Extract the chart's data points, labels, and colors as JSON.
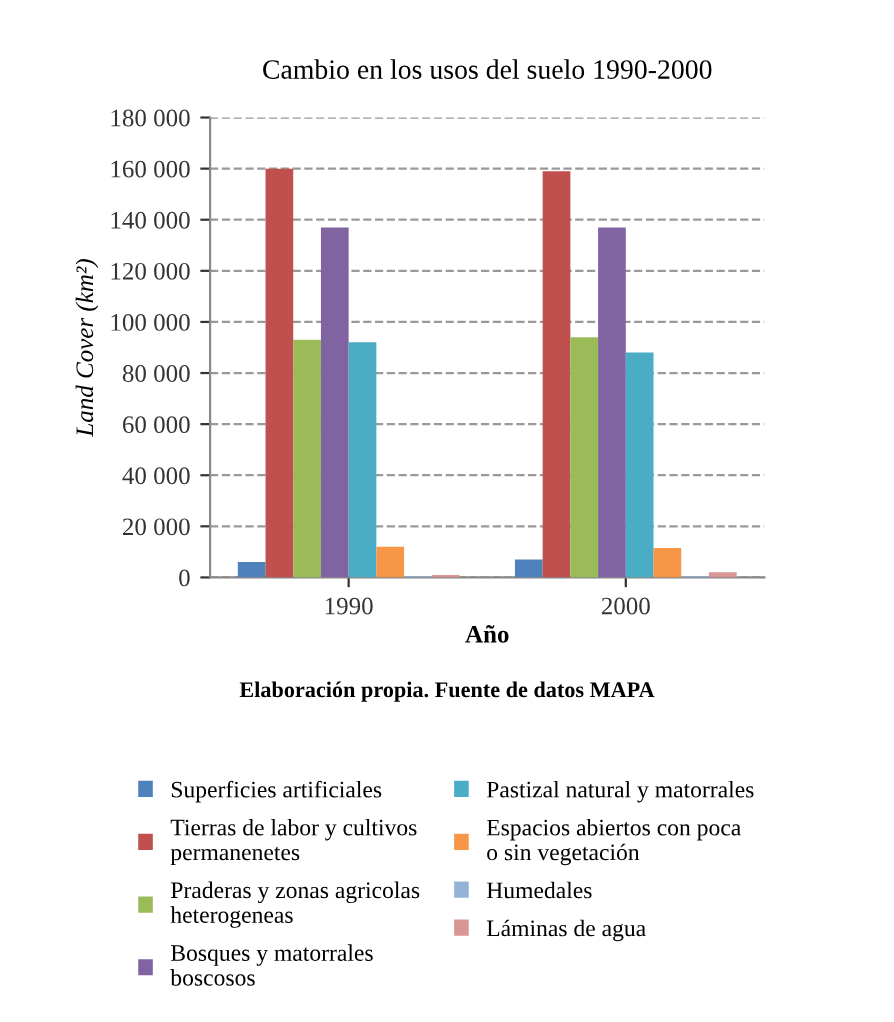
{
  "chart_data": {
    "type": "bar",
    "title": "Cambio en los usos del suelo 1990-2000",
    "xlabel": "Año",
    "ylabel": "Land Cover (km²)",
    "annotations": [
      "Elaboración propia. Fuente de datos MAPA"
    ],
    "categories": [
      "1990",
      "2000"
    ],
    "series": [
      {
        "name": "Superficies artificiales",
        "color": "#4f81bd",
        "values": [
          6000,
          7000
        ]
      },
      {
        "name": "Tierras de labor y cultivos\npermanenetes",
        "color": "#c0504d",
        "values": [
          160000,
          159000
        ]
      },
      {
        "name": "Praderas y zonas agricolas\nheterogeneas",
        "color": "#9bbb59",
        "values": [
          93000,
          94000
        ]
      },
      {
        "name": "Bosques y matorrales\nboscosos",
        "color": "#8064a2",
        "values": [
          137000,
          137000
        ]
      },
      {
        "name": "Pastizal natural y matorrales",
        "color": "#4bacc6",
        "values": [
          92000,
          88000
        ]
      },
      {
        "name": "Espacios abiertos con poca\no sin vegetación",
        "color": "#f79646",
        "values": [
          12000,
          11500
        ]
      },
      {
        "name": "Humedales",
        "color": "#95b3d7",
        "values": [
          500,
          500
        ]
      },
      {
        "name": "Láminas de agua",
        "color": "#d99694",
        "values": [
          1000,
          2000
        ]
      }
    ],
    "ylim": [
      0,
      180000
    ],
    "yticks": [
      {
        "value": 0,
        "label": "0"
      },
      {
        "value": 20000,
        "label": "20 000"
      },
      {
        "value": 40000,
        "label": "40 000"
      },
      {
        "value": 60000,
        "label": "60 000"
      },
      {
        "value": 80000,
        "label": "80 000"
      },
      {
        "value": 100000,
        "label": "100 000"
      },
      {
        "value": 120000,
        "label": "120 000"
      },
      {
        "value": 140000,
        "label": "140 000"
      },
      {
        "value": 160000,
        "label": "160 000"
      },
      {
        "value": 180000,
        "label": "180 000"
      }
    ],
    "grid": "y",
    "legend": "bottom"
  }
}
